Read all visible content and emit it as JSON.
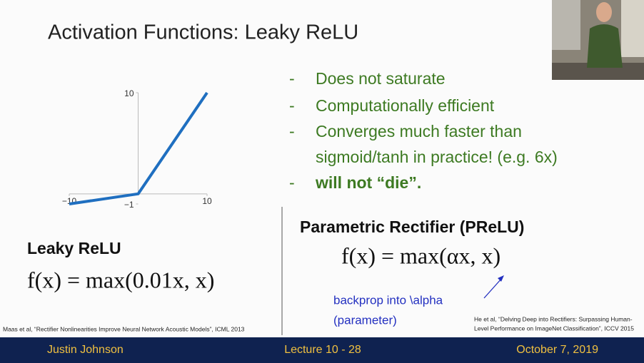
{
  "title": "Activation Functions: Leaky ReLU",
  "chart_data": {
    "type": "line",
    "x": [
      -10,
      0,
      10
    ],
    "y": [
      -1,
      0,
      10
    ],
    "color": "#1f6fc0",
    "xlim": [
      -10,
      10
    ],
    "ylim": [
      -1,
      10
    ],
    "xticks": [
      {
        "value": -10,
        "label": "−10"
      },
      10
    ],
    "yticks": [
      {
        "value": -1,
        "label": "−1"
      },
      10
    ]
  },
  "bullet_marker": "-",
  "bullets": [
    "Does not saturate",
    "Computationally efficient",
    "Converges much faster than",
    "sigmoid/tanh in practice! (e.g. 6x)",
    "will not “die”."
  ],
  "leaky": {
    "heading": "Leaky ReLU",
    "formula": "f(x) = max(0.01x, x)",
    "citation": "Maas et al, “Rectifier Nonlinearities Improve Neural Network Acoustic Models”, ICML 2013"
  },
  "prelu": {
    "heading": "Parametric Rectifier (PReLU)",
    "formula": "f(x) = max(αx, x)",
    "annotation": [
      "backprop into \\alpha",
      "(parameter)"
    ],
    "citation": [
      "He et al, “Delving Deep into Rectifiers: Surpassing Human-",
      "Level Performance on ImageNet Classification”, ICCV 2015"
    ]
  },
  "footer": {
    "author": "Justin Johnson",
    "lecture": "Lecture 10 - 28",
    "date": "October 7, 2019"
  }
}
